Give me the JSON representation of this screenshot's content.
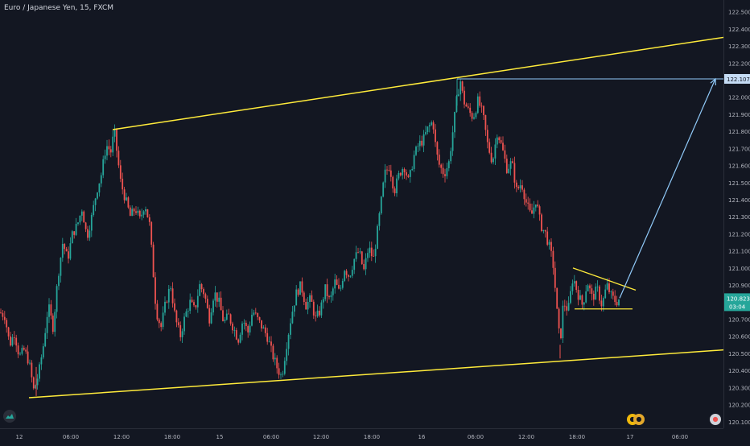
{
  "title": "Euro / Japanese Yen, 15, FXCM",
  "price_labels": {
    "target": "122.107",
    "current": "120.823",
    "countdown": "03:04"
  },
  "colors": {
    "background": "#131722",
    "bull": "#26a69a",
    "bear": "#ef5350",
    "trendline": "#ffeb3b",
    "projection": "#90caf9",
    "target_badge": "#c5dcf5",
    "current_badge": "#26a69a"
  },
  "icons": [
    "tradingview-logo-icon",
    "alert-badge-icon",
    "settings-badge-icon"
  ],
  "chart_data": {
    "type": "candlestick",
    "symbol": "Euro / Japanese Yen",
    "interval": "15",
    "source": "FXCM",
    "y_ticks": [
      122.5,
      122.4,
      122.3,
      122.2,
      122.107,
      122.0,
      121.9,
      121.8,
      121.7,
      121.6,
      121.5,
      121.4,
      121.3,
      121.2,
      121.1,
      121.0,
      120.9,
      120.823,
      120.7,
      120.6,
      120.5,
      120.4,
      120.3,
      120.2,
      120.1
    ],
    "y_tick_labels": [
      "122.500",
      "122.400",
      "122.300",
      "122.200",
      "122.107",
      "122.000",
      "121.900",
      "121.800",
      "121.700",
      "121.600",
      "121.500",
      "121.400",
      "121.300",
      "121.200",
      "121.100",
      "121.000",
      "120.900",
      "120.823",
      "120.700",
      "120.600",
      "120.500",
      "120.400",
      "120.300",
      "120.200",
      "120.100"
    ],
    "ylim": [
      120.08,
      122.55
    ],
    "x_tick_labels": [
      "12",
      "06:00",
      "12:00",
      "18:00",
      "15",
      "06:00",
      "12:00",
      "18:00",
      "16",
      "06:00",
      "12:00",
      "18:00",
      "17",
      "06:00"
    ],
    "price_path": [
      [
        0,
        120.74
      ],
      [
        6,
        120.72
      ],
      [
        12,
        120.55
      ],
      [
        18,
        120.62
      ],
      [
        24,
        120.48
      ],
      [
        30,
        120.52
      ],
      [
        36,
        120.45
      ],
      [
        42,
        120.28
      ],
      [
        48,
        120.38
      ],
      [
        54,
        120.55
      ],
      [
        60,
        120.78
      ],
      [
        66,
        120.65
      ],
      [
        72,
        120.95
      ],
      [
        78,
        121.15
      ],
      [
        84,
        121.05
      ],
      [
        90,
        121.2
      ],
      [
        96,
        121.25
      ],
      [
        102,
        121.35
      ],
      [
        108,
        121.18
      ],
      [
        114,
        121.3
      ],
      [
        120,
        121.45
      ],
      [
        126,
        121.55
      ],
      [
        132,
        121.72
      ],
      [
        138,
        121.68
      ],
      [
        142,
        121.81
      ],
      [
        146,
        121.65
      ],
      [
        150,
        121.5
      ],
      [
        156,
        121.4
      ],
      [
        162,
        121.3
      ],
      [
        168,
        121.35
      ],
      [
        174,
        121.28
      ],
      [
        180,
        121.38
      ],
      [
        186,
        121.25
      ],
      [
        190,
        121.0
      ],
      [
        194,
        120.75
      ],
      [
        200,
        120.65
      ],
      [
        206,
        120.8
      ],
      [
        212,
        120.9
      ],
      [
        218,
        120.7
      ],
      [
        224,
        120.6
      ],
      [
        230,
        120.72
      ],
      [
        236,
        120.8
      ],
      [
        242,
        120.75
      ],
      [
        248,
        120.9
      ],
      [
        254,
        120.85
      ],
      [
        260,
        120.7
      ],
      [
        266,
        120.86
      ],
      [
        272,
        120.8
      ],
      [
        278,
        120.68
      ],
      [
        284,
        120.72
      ],
      [
        290,
        120.65
      ],
      [
        296,
        120.58
      ],
      [
        302,
        120.7
      ],
      [
        308,
        120.62
      ],
      [
        314,
        120.75
      ],
      [
        320,
        120.7
      ],
      [
        326,
        120.65
      ],
      [
        332,
        120.6
      ],
      [
        338,
        120.5
      ],
      [
        344,
        120.42
      ],
      [
        350,
        120.36
      ],
      [
        356,
        120.55
      ],
      [
        362,
        120.72
      ],
      [
        368,
        120.85
      ],
      [
        374,
        120.9
      ],
      [
        380,
        120.78
      ],
      [
        386,
        120.82
      ],
      [
        392,
        120.7
      ],
      [
        398,
        120.75
      ],
      [
        404,
        120.88
      ],
      [
        410,
        120.8
      ],
      [
        416,
        120.92
      ],
      [
        422,
        120.85
      ],
      [
        428,
        121.0
      ],
      [
        434,
        120.95
      ],
      [
        440,
        121.05
      ],
      [
        446,
        121.1
      ],
      [
        452,
        120.98
      ],
      [
        458,
        121.12
      ],
      [
        464,
        121.05
      ],
      [
        470,
        121.25
      ],
      [
        474,
        121.4
      ],
      [
        478,
        121.55
      ],
      [
        484,
        121.6
      ],
      [
        490,
        121.45
      ],
      [
        496,
        121.55
      ],
      [
        502,
        121.6
      ],
      [
        508,
        121.5
      ],
      [
        514,
        121.65
      ],
      [
        520,
        121.72
      ],
      [
        526,
        121.75
      ],
      [
        532,
        121.82
      ],
      [
        538,
        121.86
      ],
      [
        542,
        121.68
      ],
      [
        546,
        121.6
      ],
      [
        552,
        121.55
      ],
      [
        558,
        121.62
      ],
      [
        564,
        121.85
      ],
      [
        568,
        122.0
      ],
      [
        572,
        122.1
      ],
      [
        576,
        121.98
      ],
      [
        582,
        121.92
      ],
      [
        588,
        121.88
      ],
      [
        594,
        121.98
      ],
      [
        600,
        121.9
      ],
      [
        606,
        121.72
      ],
      [
        612,
        121.62
      ],
      [
        618,
        121.8
      ],
      [
        624,
        121.7
      ],
      [
        630,
        121.58
      ],
      [
        636,
        121.62
      ],
      [
        642,
        121.45
      ],
      [
        648,
        121.5
      ],
      [
        654,
        121.38
      ],
      [
        660,
        121.3
      ],
      [
        666,
        121.4
      ],
      [
        672,
        121.25
      ],
      [
        678,
        121.2
      ],
      [
        684,
        121.1
      ],
      [
        688,
        121.0
      ],
      [
        692,
        120.75
      ],
      [
        696,
        120.55
      ],
      [
        700,
        120.8
      ],
      [
        706,
        120.75
      ],
      [
        712,
        120.95
      ],
      [
        718,
        120.85
      ],
      [
        724,
        120.78
      ],
      [
        730,
        120.92
      ],
      [
        736,
        120.82
      ],
      [
        742,
        120.88
      ],
      [
        748,
        120.78
      ],
      [
        754,
        120.9
      ],
      [
        760,
        120.83
      ],
      [
        766,
        120.8
      ],
      [
        770,
        120.823
      ]
    ],
    "drawings": {
      "upper_channel_line": [
        [
          140,
          121.81
        ],
        [
          899,
          122.35
        ]
      ],
      "lower_channel_line": [
        [
          36,
          120.24
        ],
        [
          899,
          120.52
        ]
      ],
      "pennant_upper": [
        [
          712,
          121.0
        ],
        [
          790,
          120.87
        ]
      ],
      "pennant_lower": [
        [
          714,
          120.76
        ],
        [
          786,
          120.76
        ]
      ],
      "target_level": [
        [
          568,
          122.107
        ],
        [
          899,
          122.107
        ]
      ],
      "projection_arrow": [
        [
          770,
          120.823
        ],
        [
          889,
          122.107
        ]
      ]
    }
  }
}
